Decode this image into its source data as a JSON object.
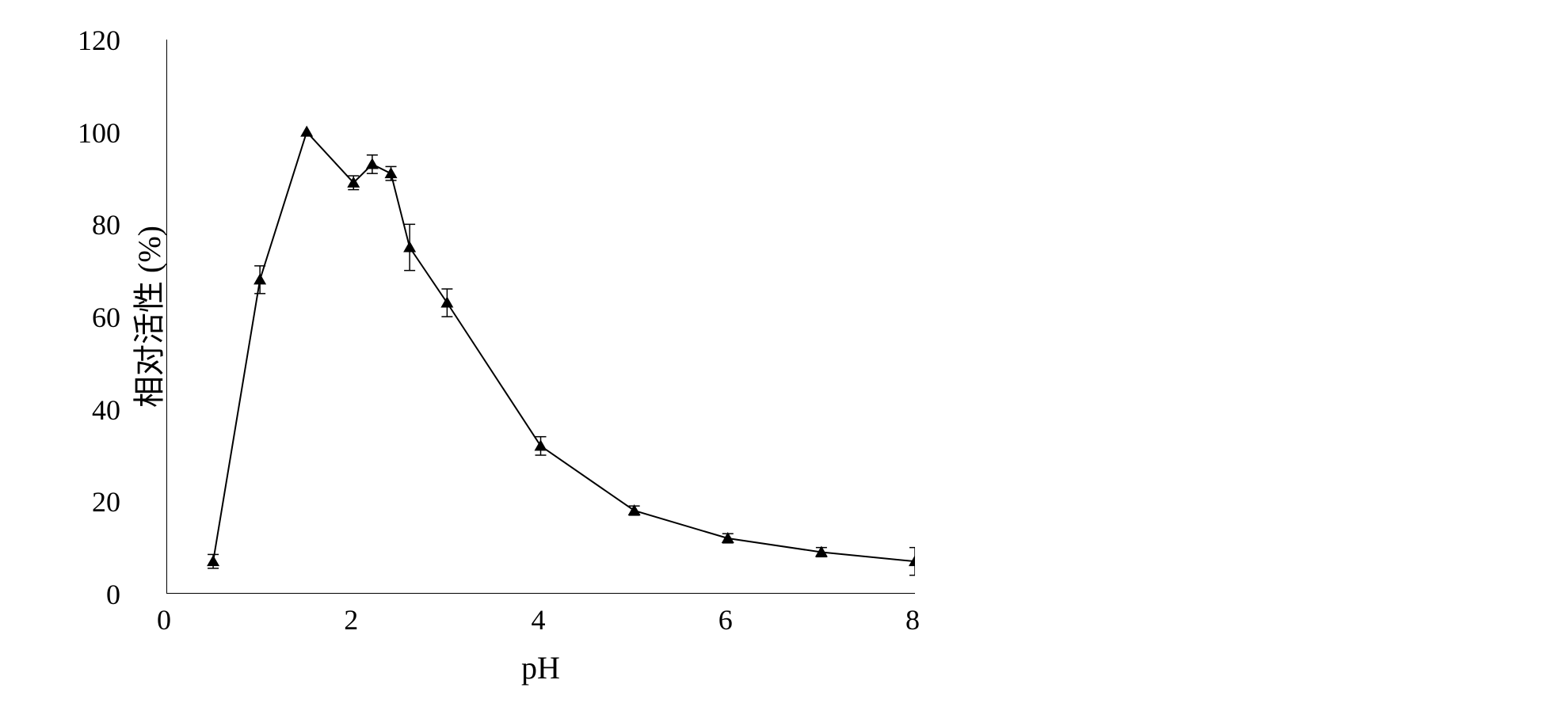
{
  "chart": {
    "type": "line",
    "xlabel": "pH",
    "ylabel": "相对活性 (%)",
    "xlabel_fontsize": 40,
    "ylabel_fontsize": 40,
    "tick_fontsize": 36,
    "xlim": [
      0,
      8
    ],
    "ylim": [
      0,
      120
    ],
    "xticks": [
      0,
      2,
      4,
      6,
      8
    ],
    "yticks": [
      0,
      20,
      40,
      60,
      80,
      100,
      120
    ],
    "background_color": "#ffffff",
    "axis_color": "#000000",
    "line_color": "#000000",
    "line_width": 2,
    "marker_style": "triangle",
    "marker_size": 16,
    "marker_color": "#000000",
    "error_bar_color": "#000000",
    "data": {
      "x": [
        0.5,
        1.0,
        1.5,
        2.0,
        2.2,
        2.4,
        2.6,
        3.0,
        4.0,
        5.0,
        6.0,
        7.0,
        8.0
      ],
      "y": [
        7,
        68,
        100,
        89,
        93,
        91,
        75,
        63,
        32,
        18,
        12,
        9,
        7
      ],
      "yerr": [
        1.5,
        3,
        0,
        1.5,
        2,
        1.5,
        5,
        3,
        2,
        1,
        1,
        1,
        3
      ]
    }
  }
}
